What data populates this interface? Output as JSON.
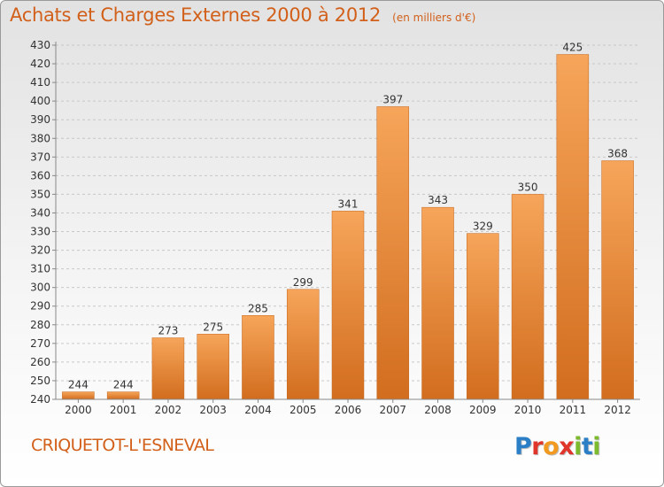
{
  "header": {
    "title": "Achats et Charges Externes 2000 à 2012",
    "subtitle": "(en milliers d'€)"
  },
  "footer": {
    "town": "CRIQUETOT-L'ESNEVAL",
    "logo": [
      "P",
      "r",
      "o",
      "x",
      "i",
      "t",
      "i"
    ]
  },
  "colors": {
    "title": "#d2601a",
    "bar_light": "#f6a55a",
    "bar_dark": "#d26d1e",
    "logo": [
      "#2a7fc7",
      "#e0352b",
      "#f29a1f",
      "#e0352b",
      "#7cbb2e",
      "#2a7fc7",
      "#7cbb2e"
    ]
  },
  "chart_data": {
    "type": "bar",
    "categories": [
      "2000",
      "2001",
      "2002",
      "2003",
      "2004",
      "2005",
      "2006",
      "2007",
      "2008",
      "2009",
      "2010",
      "2011",
      "2012"
    ],
    "values": [
      244,
      244,
      273,
      275,
      285,
      299,
      341,
      397,
      343,
      329,
      350,
      425,
      368
    ],
    "ylim": [
      240,
      430
    ],
    "yticks": [
      240,
      250,
      260,
      270,
      280,
      290,
      300,
      310,
      320,
      330,
      340,
      350,
      360,
      370,
      380,
      390,
      400,
      410,
      420,
      430
    ],
    "grid": "horizontal dashed",
    "data_labels": true
  }
}
